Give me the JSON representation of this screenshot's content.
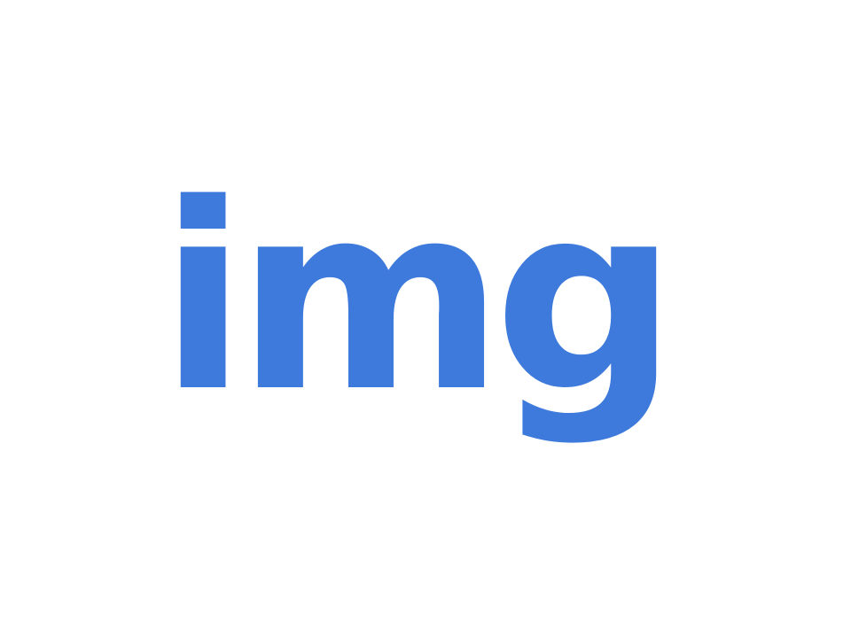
{
  "image_placeholder": {
    "text": "img",
    "color": "#3D7ADB",
    "background": "#FFFFFF"
  }
}
